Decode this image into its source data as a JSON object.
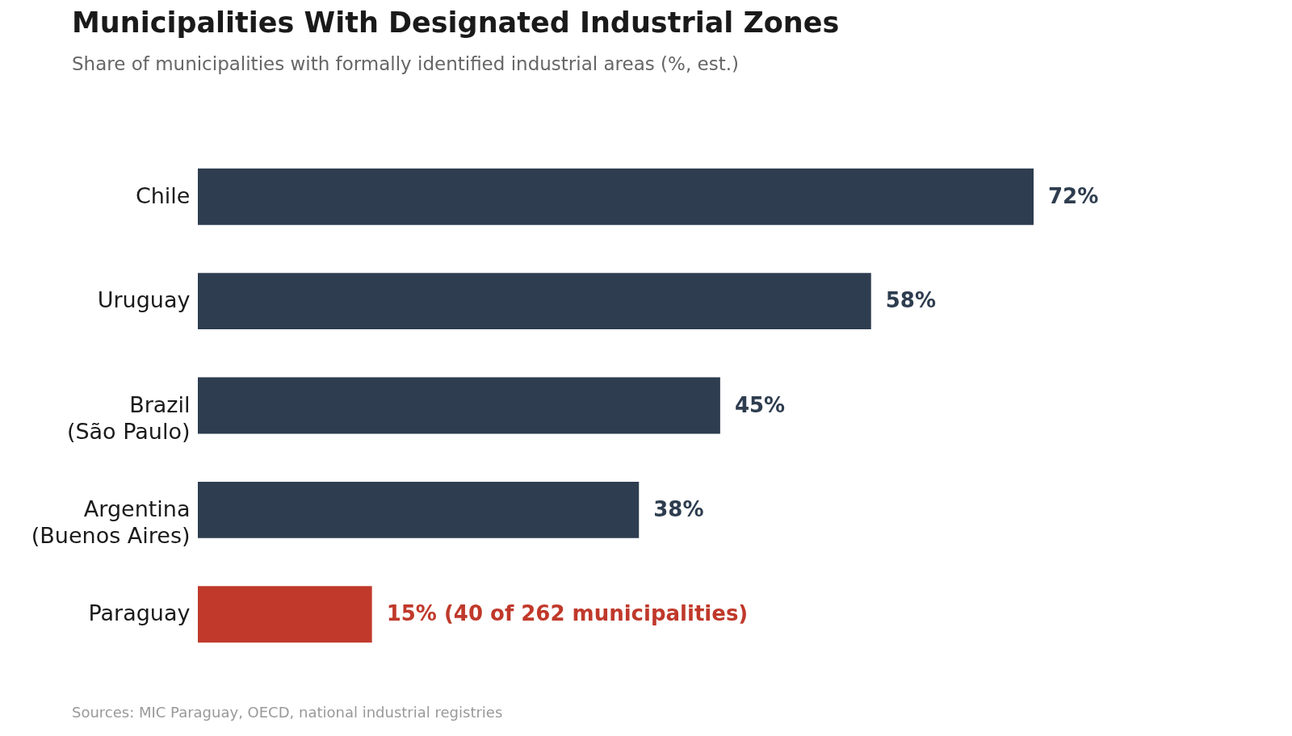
{
  "chart_data": {
    "type": "bar",
    "orientation": "horizontal",
    "title": "Municipalities With Designated Industrial Zones",
    "subtitle": "Share of municipalities with formally identified industrial areas (%, est.)",
    "categories": [
      "Chile",
      "Uruguay",
      "Brazil (São Paulo)",
      "Argentina (Buenos Aires)",
      "Paraguay"
    ],
    "values": [
      72,
      58,
      45,
      38,
      15
    ],
    "colors": [
      "#2e3d4f",
      "#2e3d4f",
      "#2e3d4f",
      "#2e3d4f",
      "#c0392b"
    ],
    "value_labels": [
      "72%",
      "58%",
      "45%",
      "38%",
      "15%  (40 of 262 municipalities)"
    ],
    "annotations": [
      "Sources: MIC Paraguay, OECD, national industrial registries"
    ]
  }
}
